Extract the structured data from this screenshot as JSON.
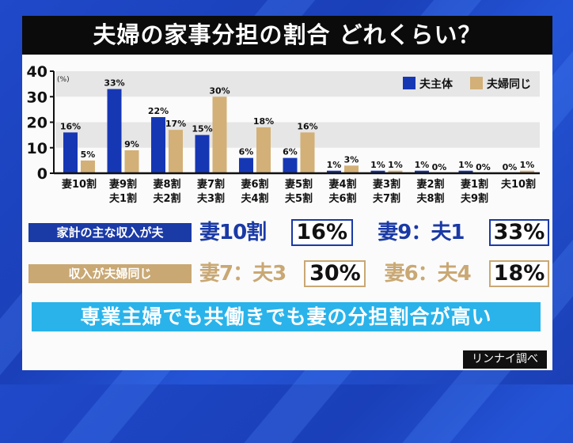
{
  "title": "夫婦の家事分担の割合 どれくらい？",
  "chart_data": {
    "type": "bar",
    "ylabel": "(%)",
    "ylim": [
      0,
      40
    ],
    "yticks": [
      0,
      10,
      20,
      30,
      40
    ],
    "grid": "alternating bands",
    "legend_position": "top-right",
    "categories": [
      [
        "妻10割",
        ""
      ],
      [
        "妻9割",
        "夫1割"
      ],
      [
        "妻8割",
        "夫2割"
      ],
      [
        "妻7割",
        "夫3割"
      ],
      [
        "妻6割",
        "夫4割"
      ],
      [
        "妻5割",
        "夫5割"
      ],
      [
        "妻4割",
        "夫6割"
      ],
      [
        "妻3割",
        "夫7割"
      ],
      [
        "妻2割",
        "夫8割"
      ],
      [
        "妻1割",
        "夫9割"
      ],
      [
        "夫10割",
        ""
      ]
    ],
    "series": [
      {
        "name": "夫主体",
        "color": "#1637b4",
        "values": [
          16,
          33,
          22,
          15,
          6,
          6,
          1,
          1,
          1,
          1,
          0
        ]
      },
      {
        "name": "夫婦同じ",
        "color": "#d3b077",
        "values": [
          5,
          9,
          17,
          30,
          18,
          16,
          3,
          1,
          0,
          0,
          1
        ]
      }
    ]
  },
  "summary": {
    "row1": {
      "label": "家計の主な収入が夫",
      "color": "#1a3aa6",
      "items": [
        {
          "ratio": "妻10割",
          "value": "16%"
        },
        {
          "ratio": "妻9：夫1",
          "value": "33%"
        }
      ]
    },
    "row2": {
      "label": "収入が夫婦同じ",
      "color": "#c9a874",
      "items": [
        {
          "ratio": "妻7：夫3",
          "value": "30%"
        },
        {
          "ratio": "妻6：夫4",
          "value": "18%"
        }
      ]
    }
  },
  "banner": "専業主婦でも共働きでも妻の分担割合が高い",
  "source": "リンナイ調べ"
}
